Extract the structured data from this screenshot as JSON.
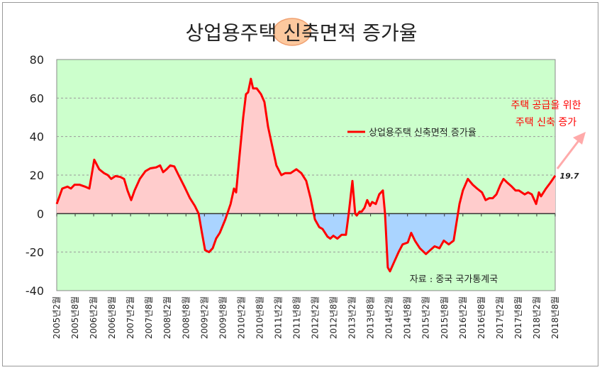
{
  "chart_data": {
    "type": "area",
    "title_parts": [
      "상업용주택 ",
      "신축",
      "면적 증가율"
    ],
    "ylim": [
      -40,
      80
    ],
    "yticks": [
      -40,
      -20,
      0,
      20,
      40,
      60,
      80
    ],
    "xlabel": "",
    "ylabel": "",
    "x_unit": "months since 2005-02",
    "xtick_labels": [
      "2005년2월",
      "2005년8월",
      "2006년2월",
      "2006년8월",
      "2007년2월",
      "2007년8월",
      "2008년2월",
      "2008년8월",
      "2009년2월",
      "2009년8월",
      "2010년2월",
      "2010년8월",
      "2011년2월",
      "2011년8월",
      "2012년2월",
      "2012년8월",
      "2013년2월",
      "2013년8월",
      "2014년2월",
      "2014년8월",
      "2015년2월",
      "2015년8월",
      "2016년2월",
      "2016년8월",
      "2017년2월",
      "2017년8월",
      "2018년2월",
      "2018년8월"
    ],
    "grid": true,
    "legend": {
      "position": "top-right",
      "label": "상업용주택 신축면적 증가율"
    },
    "series": [
      {
        "name": "상업용주택 신축면적 증가율",
        "color": "#ff0000",
        "positive_fill": "#ffcccc",
        "negative_fill": "#aad4ff",
        "points": [
          [
            0,
            5
          ],
          [
            1.8,
            13
          ],
          [
            3.5,
            14
          ],
          [
            4.6,
            13
          ],
          [
            5.8,
            15
          ],
          [
            7.4,
            15
          ],
          [
            9.2,
            14
          ],
          [
            10.6,
            13
          ],
          [
            12.2,
            28
          ],
          [
            13.8,
            23
          ],
          [
            15.4,
            21
          ],
          [
            16.6,
            20
          ],
          [
            17.7,
            18
          ],
          [
            19.1,
            19.5
          ],
          [
            20.7,
            19
          ],
          [
            21.9,
            18
          ],
          [
            23,
            12
          ],
          [
            24.2,
            7
          ],
          [
            25.3,
            12
          ],
          [
            27,
            18
          ],
          [
            28.8,
            22
          ],
          [
            30.4,
            23.5
          ],
          [
            32.3,
            24
          ],
          [
            33.6,
            25
          ],
          [
            34.6,
            21.5
          ],
          [
            35.7,
            23
          ],
          [
            36.9,
            25
          ],
          [
            38.2,
            24.5
          ],
          [
            39.6,
            20
          ],
          [
            41.5,
            14
          ],
          [
            43.3,
            8
          ],
          [
            44.9,
            4
          ],
          [
            46.1,
            0
          ],
          [
            47.2,
            -10
          ],
          [
            48.2,
            -19
          ],
          [
            49.5,
            -20
          ],
          [
            50.7,
            -18
          ],
          [
            51.8,
            -13
          ],
          [
            53,
            -10
          ],
          [
            54.8,
            -3
          ],
          [
            56.5,
            5
          ],
          [
            57.6,
            13
          ],
          [
            58.3,
            11
          ],
          [
            59.4,
            30
          ],
          [
            60.6,
            50
          ],
          [
            61.5,
            62
          ],
          [
            62.2,
            63
          ],
          [
            63.1,
            70
          ],
          [
            63.8,
            65
          ],
          [
            65,
            65
          ],
          [
            66.4,
            62
          ],
          [
            67.5,
            58
          ],
          [
            68.7,
            45
          ],
          [
            70.3,
            33
          ],
          [
            71.4,
            25
          ],
          [
            73,
            20
          ],
          [
            74.2,
            21
          ],
          [
            76,
            21
          ],
          [
            77.9,
            23
          ],
          [
            79.5,
            21
          ],
          [
            81.1,
            17
          ],
          [
            82.5,
            8
          ],
          [
            83.9,
            -3
          ],
          [
            85.3,
            -7
          ],
          [
            86.4,
            -8
          ],
          [
            88,
            -12
          ],
          [
            88.9,
            -13
          ],
          [
            89.9,
            -11.5
          ],
          [
            91.2,
            -13
          ],
          [
            92.6,
            -11
          ],
          [
            94,
            -11
          ],
          [
            94.9,
            0
          ],
          [
            96.1,
            17
          ],
          [
            97,
            0
          ],
          [
            97.5,
            -1
          ],
          [
            98.4,
            1
          ],
          [
            99.1,
            1
          ],
          [
            100,
            3
          ],
          [
            100.9,
            7
          ],
          [
            101.8,
            4
          ],
          [
            102.5,
            6
          ],
          [
            103.7,
            5
          ],
          [
            104.8,
            10
          ],
          [
            106,
            12
          ],
          [
            106.7,
            0
          ],
          [
            107.6,
            -28
          ],
          [
            108.3,
            -30
          ],
          [
            109.7,
            -25
          ],
          [
            111.1,
            -20
          ],
          [
            112.4,
            -16
          ],
          [
            114.1,
            -15
          ],
          [
            115.2,
            -10
          ],
          [
            116.4,
            -14
          ],
          [
            118,
            -18
          ],
          [
            120,
            -21
          ],
          [
            121.4,
            -19
          ],
          [
            122.8,
            -17
          ],
          [
            124.4,
            -18
          ],
          [
            125.8,
            -14
          ],
          [
            127.4,
            -16
          ],
          [
            129,
            -14
          ],
          [
            130.9,
            5
          ],
          [
            132,
            12
          ],
          [
            133.6,
            18
          ],
          [
            135.2,
            15
          ],
          [
            136.6,
            13
          ],
          [
            138.2,
            11
          ],
          [
            139.4,
            7
          ],
          [
            140.6,
            8
          ],
          [
            141.7,
            8
          ],
          [
            142.9,
            10
          ],
          [
            144.2,
            15
          ],
          [
            145.2,
            18
          ],
          [
            146.5,
            16
          ],
          [
            147.9,
            14
          ],
          [
            149.1,
            12
          ],
          [
            150.2,
            12
          ],
          [
            152.1,
            10
          ],
          [
            153.2,
            11
          ],
          [
            154.4,
            10
          ],
          [
            155.8,
            5
          ],
          [
            156.7,
            11
          ],
          [
            157.4,
            9
          ],
          [
            159,
            13
          ],
          [
            160.4,
            16
          ],
          [
            162,
            19.7
          ]
        ]
      }
    ],
    "annotations": {
      "last_value": "19.7",
      "callout_line1": "주택 공급을 위한",
      "callout_line2": "주택 신축 증가",
      "source": "자료 : 중국 국가통계국"
    }
  }
}
